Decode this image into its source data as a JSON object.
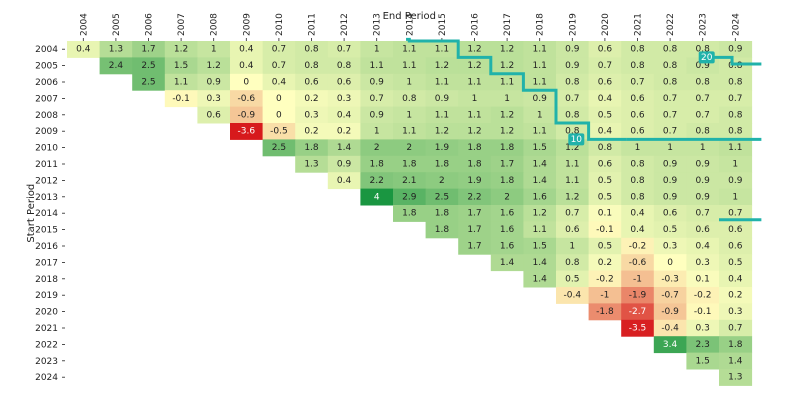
{
  "chart_data": {
    "type": "heatmap",
    "xlabel": "End Period",
    "ylabel": "Start Period",
    "x_labels": [
      "2004",
      "2005",
      "2006",
      "2007",
      "2008",
      "2009",
      "2010",
      "2011",
      "2012",
      "2013",
      "2014",
      "2015",
      "2016",
      "2017",
      "2018",
      "2019",
      "2020",
      "2021",
      "2022",
      "2023",
      "2024"
    ],
    "y_labels": [
      "2004",
      "2005",
      "2006",
      "2007",
      "2008",
      "2009",
      "2010",
      "2011",
      "2012",
      "2013",
      "2014",
      "2015",
      "2016",
      "2017",
      "2018",
      "2019",
      "2020",
      "2021",
      "2022",
      "2023",
      "2024"
    ],
    "color_scale": {
      "type": "diverging",
      "low": "#d7191c",
      "mid": "#ffffbf",
      "high": "#1a9641",
      "vmin": -3.6,
      "vmax": 4
    },
    "values": [
      [
        0.4,
        1.3,
        1.7,
        1.2,
        1,
        0.4,
        0.7,
        0.8,
        0.7,
        1,
        1.1,
        1.1,
        1.2,
        1.2,
        1.1,
        0.9,
        0.6,
        0.8,
        0.8,
        0.8,
        0.9
      ],
      [
        null,
        2.4,
        2.5,
        1.5,
        1.2,
        0.4,
        0.7,
        0.8,
        0.8,
        1.1,
        1.1,
        1.2,
        1.2,
        1.2,
        1.1,
        0.9,
        0.7,
        0.8,
        0.8,
        0.9,
        0.8
      ],
      [
        null,
        null,
        2.5,
        1.1,
        0.9,
        0,
        0.4,
        0.6,
        0.6,
        0.9,
        1,
        1.1,
        1.1,
        1.1,
        1.1,
        0.8,
        0.6,
        0.7,
        0.8,
        0.8,
        0.8
      ],
      [
        null,
        null,
        null,
        -0.1,
        0.3,
        -0.6,
        0,
        0.2,
        0.3,
        0.7,
        0.8,
        0.9,
        1,
        1,
        0.9,
        0.7,
        0.4,
        0.6,
        0.7,
        0.7,
        0.7
      ],
      [
        null,
        null,
        null,
        null,
        0.6,
        -0.9,
        0,
        0.3,
        0.4,
        0.9,
        1,
        1.1,
        1.1,
        1.2,
        1,
        0.8,
        0.5,
        0.6,
        0.7,
        0.7,
        0.8
      ],
      [
        null,
        null,
        null,
        null,
        null,
        -3.6,
        -0.5,
        0.2,
        0.2,
        1,
        1.1,
        1.2,
        1.2,
        1.2,
        1.1,
        0.8,
        0.4,
        0.6,
        0.7,
        0.8,
        0.8
      ],
      [
        null,
        null,
        null,
        null,
        null,
        null,
        2.5,
        1.8,
        1.4,
        2,
        2,
        1.9,
        1.8,
        1.8,
        1.5,
        1.2,
        0.8,
        1,
        1,
        1,
        1.1
      ],
      [
        null,
        null,
        null,
        null,
        null,
        null,
        null,
        1.3,
        0.9,
        1.8,
        1.8,
        1.8,
        1.8,
        1.7,
        1.4,
        1.1,
        0.6,
        0.8,
        0.9,
        0.9,
        1
      ],
      [
        null,
        null,
        null,
        null,
        null,
        null,
        null,
        null,
        0.4,
        2.2,
        2.1,
        2,
        1.9,
        1.8,
        1.4,
        1.1,
        0.5,
        0.8,
        0.9,
        0.9,
        0.9
      ],
      [
        null,
        null,
        null,
        null,
        null,
        null,
        null,
        null,
        null,
        4,
        2.9,
        2.5,
        2.2,
        2,
        1.6,
        1.2,
        0.5,
        0.8,
        0.9,
        0.9,
        1
      ],
      [
        null,
        null,
        null,
        null,
        null,
        null,
        null,
        null,
        null,
        null,
        1.8,
        1.8,
        1.7,
        1.6,
        1.2,
        0.7,
        0.1,
        0.4,
        0.6,
        0.7,
        0.7
      ],
      [
        null,
        null,
        null,
        null,
        null,
        null,
        null,
        null,
        null,
        null,
        null,
        1.8,
        1.7,
        1.6,
        1.1,
        0.6,
        -0.1,
        0.4,
        0.5,
        0.6,
        0.6
      ],
      [
        null,
        null,
        null,
        null,
        null,
        null,
        null,
        null,
        null,
        null,
        null,
        null,
        1.7,
        1.6,
        1.5,
        1,
        0.5,
        -0.2,
        0.3,
        0.4,
        0.6
      ],
      [
        null,
        null,
        null,
        null,
        null,
        null,
        null,
        null,
        null,
        null,
        null,
        null,
        null,
        1.4,
        1.4,
        0.8,
        0.2,
        -0.6,
        0,
        0.3,
        0.5
      ],
      [
        null,
        null,
        null,
        null,
        null,
        null,
        null,
        null,
        null,
        null,
        null,
        null,
        null,
        null,
        1.4,
        0.5,
        -0.2,
        -1,
        -0.3,
        0.1,
        0.4
      ],
      [
        null,
        null,
        null,
        null,
        null,
        null,
        null,
        null,
        null,
        null,
        null,
        null,
        null,
        null,
        null,
        -0.4,
        -1,
        -1.9,
        -0.7,
        -0.2,
        0.2
      ],
      [
        null,
        null,
        null,
        null,
        null,
        null,
        null,
        null,
        null,
        null,
        null,
        null,
        null,
        null,
        null,
        null,
        -1.8,
        -2.7,
        -0.9,
        -0.1,
        0.3
      ],
      [
        null,
        null,
        null,
        null,
        null,
        null,
        null,
        null,
        null,
        null,
        null,
        null,
        null,
        null,
        null,
        null,
        null,
        -3.5,
        -0.4,
        0.3,
        0.7
      ],
      [
        null,
        null,
        null,
        null,
        null,
        null,
        null,
        null,
        null,
        null,
        null,
        null,
        null,
        null,
        null,
        null,
        null,
        null,
        3.4,
        2.3,
        1.8
      ],
      [
        null,
        null,
        null,
        null,
        null,
        null,
        null,
        null,
        null,
        null,
        null,
        null,
        null,
        null,
        null,
        null,
        null,
        null,
        null,
        1.5,
        1.4
      ],
      [
        null,
        null,
        null,
        null,
        null,
        null,
        null,
        null,
        null,
        null,
        null,
        null,
        null,
        null,
        null,
        null,
        null,
        null,
        null,
        null,
        1.3
      ]
    ],
    "bottom_row_note": "2024 value 1.3",
    "contours": [
      {
        "label": "10",
        "color": "#20b2aa",
        "path_cells": [
          [
            6,
            17
          ],
          [
            6,
            16
          ],
          [
            5,
            16
          ],
          [
            4,
            16
          ],
          [
            4,
            15
          ],
          [
            3,
            15
          ],
          [
            3,
            14
          ],
          [
            2,
            14
          ],
          [
            2,
            13
          ],
          [
            1,
            13
          ],
          [
            1,
            12
          ],
          [
            0,
            12
          ],
          [
            0,
            11
          ],
          [
            0,
            10
          ]
        ],
        "label_cell": [
          6,
          15
        ]
      },
      {
        "label": "20",
        "color": "#20b2aa",
        "path_cells": [
          [
            10,
            20
          ],
          [
            10,
            19
          ],
          [
            9,
            19
          ],
          [
            8,
            19
          ],
          [
            7,
            19
          ],
          [
            6,
            19
          ],
          [
            5,
            19
          ],
          [
            4,
            19
          ],
          [
            3,
            19
          ],
          [
            2,
            19
          ],
          [
            1,
            19
          ],
          [
            1,
            20
          ]
        ],
        "label_cell": [
          1,
          19
        ]
      }
    ]
  }
}
